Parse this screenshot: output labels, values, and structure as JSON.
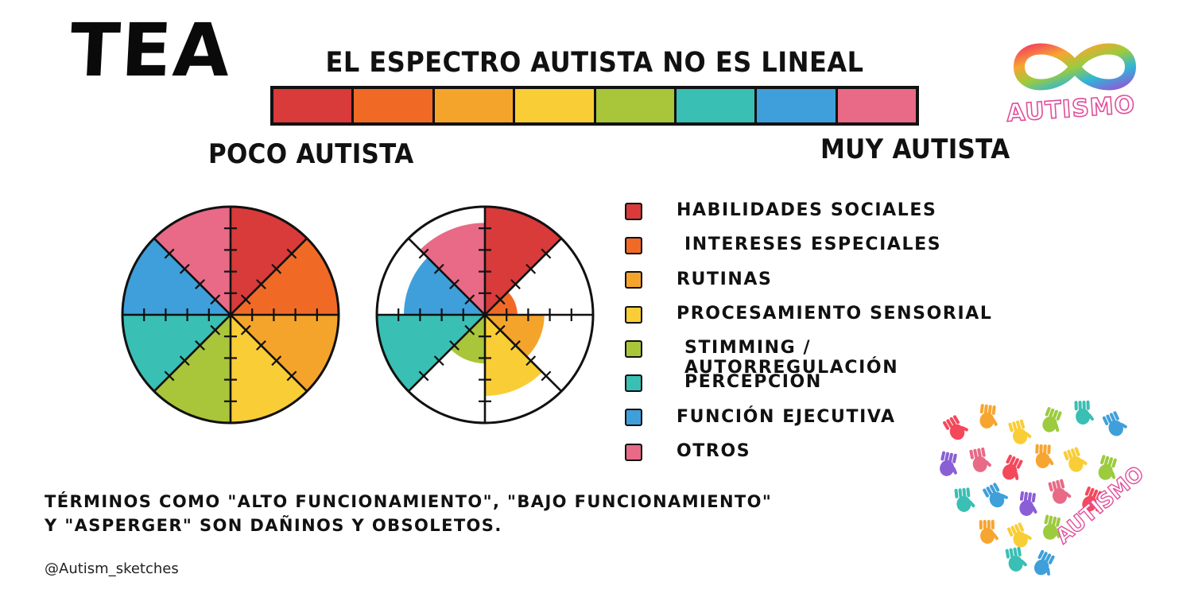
{
  "title": "TEA",
  "subtitle": "EL ESPECTRO AUTISTA NO ES LINEAL",
  "spectrum_colors": [
    "#d93a3a",
    "#f06a26",
    "#f5a42b",
    "#f9cd35",
    "#a9c53a",
    "#39bfb4",
    "#3f9fda",
    "#e86a86"
  ],
  "spectrum_left_label": "POCO AUTISTA",
  "spectrum_right_label": "MUY AUTISTA",
  "logo": {
    "text": "AUTISMO",
    "icon": "rainbow-infinity-icon"
  },
  "wheels": {
    "categories": [
      "HABILIDADES SOCIALES",
      "INTERESES ESPECIALES",
      "RUTINAS",
      "PROCESAMIENTO SENSORIAL",
      "STIMMING / AUTORREGULACIÓN",
      "PERCEPCIÓN",
      "FUNCIÓN EJECUTIVA",
      "OTROS"
    ],
    "colors": [
      "#d93a3a",
      "#f06a26",
      "#f5a42b",
      "#f9cd35",
      "#a9c53a",
      "#39bfb4",
      "#3f9fda",
      "#e86a86"
    ],
    "full_levels": [
      1,
      1,
      1,
      1,
      1,
      1,
      1,
      1
    ],
    "spiky_levels": [
      1,
      0.3,
      0.55,
      0.75,
      0.45,
      1,
      0.75,
      0.85
    ],
    "ticks_per_spoke": 4
  },
  "legend": [
    {
      "label": "HABILIDADES SOCIALES",
      "color": "#d93a3a"
    },
    {
      "label": "INTERESES ESPECIALES",
      "color": "#f06a26"
    },
    {
      "label": "RUTINAS",
      "color": "#f5a42b"
    },
    {
      "label": "PROCESAMIENTO SENSORIAL",
      "color": "#f9cd35"
    },
    {
      "label": "STIMMING / AUTORREGULACIÓN",
      "color": "#a9c53a"
    },
    {
      "label": "PERCEPCIÓN",
      "color": "#39bfb4"
    },
    {
      "label": "FUNCIÓN EJECUTIVA",
      "color": "#3f9fda"
    },
    {
      "label": "OTROS",
      "color": "#e86a86"
    }
  ],
  "note": "TÉRMINOS COMO \"ALTO FUNCIONAMIENTO\", \"BAJO FUNCIONAMIENTO\" Y \"ASPERGER\" SON DAÑINOS Y OBSOLETOS.",
  "credit": "@Autism_sketches",
  "decoration": {
    "hands_heart": {
      "icon": "handprint-heart-icon",
      "text": "AUTISMO"
    }
  }
}
